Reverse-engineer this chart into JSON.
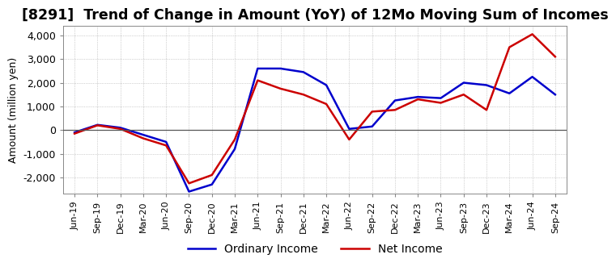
{
  "title": "[8291]  Trend of Change in Amount (YoY) of 12Mo Moving Sum of Incomes",
  "ylabel": "Amount (million yen)",
  "ylim": [
    -2700,
    4400
  ],
  "yticks": [
    -2000,
    -1000,
    0,
    1000,
    2000,
    3000,
    4000
  ],
  "x_labels": [
    "Jun-19",
    "Sep-19",
    "Dec-19",
    "Mar-20",
    "Jun-20",
    "Sep-20",
    "Dec-20",
    "Mar-21",
    "Jun-21",
    "Sep-21",
    "Dec-21",
    "Mar-22",
    "Jun-22",
    "Sep-22",
    "Dec-22",
    "Mar-23",
    "Jun-23",
    "Sep-23",
    "Dec-23",
    "Mar-24",
    "Jun-24",
    "Sep-24"
  ],
  "ordinary_income": [
    -100,
    220,
    100,
    -200,
    -500,
    -2600,
    -2300,
    -800,
    2600,
    2600,
    2450,
    1900,
    50,
    150,
    1250,
    1400,
    1350,
    2000,
    1900,
    1550,
    2250,
    1500
  ],
  "net_income": [
    -150,
    200,
    50,
    -350,
    -650,
    -2250,
    -1900,
    -400,
    2100,
    1750,
    1500,
    1100,
    -400,
    780,
    850,
    1300,
    1150,
    1500,
    850,
    3500,
    4050,
    3100
  ],
  "ordinary_color": "#0000cc",
  "net_color": "#cc0000",
  "line_width": 1.8,
  "background_color": "#ffffff",
  "grid_color": "#aaaaaa",
  "title_fontsize": 12.5,
  "legend_labels": [
    "Ordinary Income",
    "Net Income"
  ],
  "spine_color": "#888888"
}
